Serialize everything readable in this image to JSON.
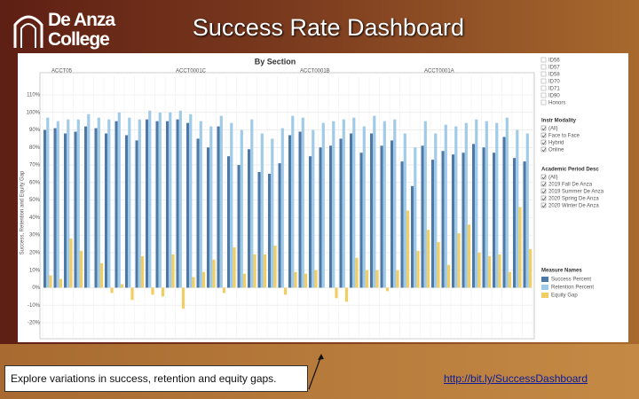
{
  "header": {
    "logo_line1": "De Anza",
    "logo_line2": "College",
    "title": "Success Rate Dashboard"
  },
  "chart_data": {
    "type": "bar",
    "title": "By Section",
    "panel_labels": [
      "ACCT05",
      "ACCT0001C",
      "ACCT0001B",
      "ACCT0001A"
    ],
    "y_label": "Success, Retention and Equity Gap",
    "ylim": [
      -20,
      110
    ],
    "yticks": [
      {
        "value": -20,
        "label": "-20%"
      },
      {
        "value": -10,
        "label": "-10%"
      },
      {
        "value": 0,
        "label": "0%"
      },
      {
        "value": 10,
        "label": "10%"
      },
      {
        "value": 20,
        "label": "20%"
      },
      {
        "value": 30,
        "label": "30%"
      },
      {
        "value": 40,
        "label": "40%"
      },
      {
        "value": 50,
        "label": "50%"
      },
      {
        "value": 60,
        "label": "60%"
      },
      {
        "value": 70,
        "label": "70%"
      },
      {
        "value": 80,
        "label": "80%"
      },
      {
        "value": 90,
        "label": "90%"
      },
      {
        "value": 100,
        "label": "100%"
      },
      {
        "value": 110,
        "label": "110%"
      }
    ],
    "grid": true,
    "series": [
      {
        "name": "Success Percent",
        "color": "#4e79a7",
        "values": [
          90,
          91,
          88,
          89,
          92,
          91,
          88,
          95,
          87,
          84,
          96,
          95,
          95,
          96,
          94,
          85,
          80,
          92,
          75,
          70,
          79,
          66,
          65,
          71,
          87,
          89,
          75,
          80,
          81,
          85,
          88,
          77,
          88,
          81,
          84,
          72,
          58,
          81,
          73,
          78,
          76,
          77,
          82,
          80,
          77,
          86,
          74,
          72
        ]
      },
      {
        "name": "Retention Percent",
        "color": "#a0cbe8",
        "values": [
          97,
          95,
          96,
          96,
          99,
          97,
          96,
          100,
          97,
          96,
          101,
          100,
          100,
          101,
          99,
          95,
          92,
          98,
          94,
          90,
          96,
          88,
          85,
          91,
          98,
          97,
          90,
          94,
          95,
          96,
          97,
          92,
          98,
          95,
          96,
          88,
          80,
          95,
          88,
          93,
          92,
          94,
          96,
          95,
          94,
          97,
          90,
          88
        ]
      },
      {
        "name": "Equity Gap",
        "color": "#f1ce63",
        "values": [
          7,
          5,
          28,
          21,
          0,
          14,
          -3,
          2,
          -7,
          18,
          -4,
          -5,
          19,
          -12,
          6,
          9,
          16,
          -3,
          23,
          8,
          19,
          19,
          24,
          -4,
          9,
          8,
          10,
          0,
          -6,
          -8,
          17,
          10,
          10,
          -2,
          10,
          44,
          21,
          33,
          26,
          13,
          31,
          36,
          20,
          18,
          19,
          9,
          46,
          22
        ]
      }
    ],
    "filters": [
      {
        "title": "Instr Modality",
        "options": [
          "(All)",
          "Face to Face",
          "Hybrid",
          "Online"
        ]
      },
      {
        "title": "Academic Period Desc",
        "options": [
          "(All)",
          "2019 Fall De Anza",
          "2019 Summer De Anza",
          "2020 Spring De Anza",
          "2020 Winter De Anza"
        ]
      }
    ],
    "top_list": [
      "ID56",
      "ID57",
      "ID58",
      "ID70",
      "ID71",
      "ID90",
      "Honors"
    ],
    "legend_title": "Measure Names"
  },
  "footer": {
    "note": "Explore variations in success, retention and equity gaps.",
    "link": "http://bit.ly/SuccessDashboard"
  }
}
